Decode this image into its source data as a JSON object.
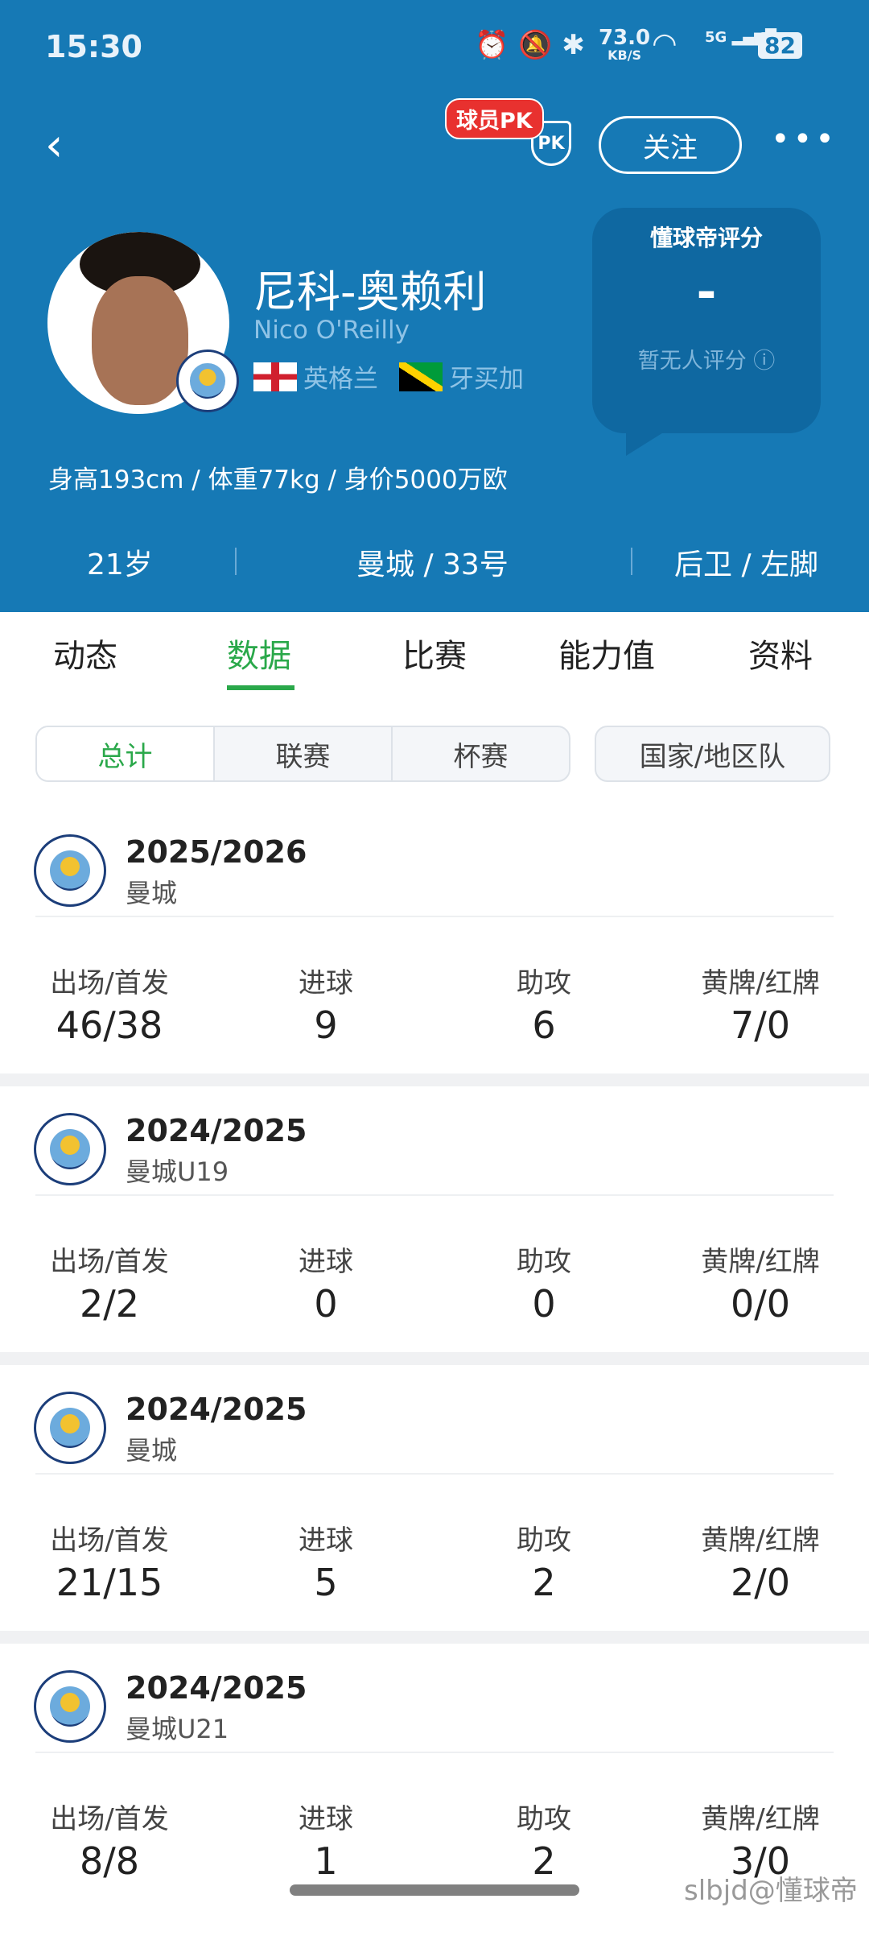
{
  "status_bar": {
    "time": "15:30",
    "net_speed": "73.0",
    "net_unit": "KB/S",
    "signal": "5G",
    "battery": "82"
  },
  "header": {
    "pk_badge": "球员PK",
    "pk_icon": "PK",
    "follow_label": "关注"
  },
  "player": {
    "name_cn": "尼科-奥赖利",
    "name_en": "Nico O'Reilly",
    "nationalities": [
      "英格兰",
      "牙买加"
    ],
    "stats_line": "身高193cm / 体重77kg / 身价5000万欧",
    "age": "21岁",
    "club_number": "曼城 / 33号",
    "position_foot": "后卫 / 左脚"
  },
  "rating": {
    "title": "懂球帝评分",
    "value": "-",
    "note": "暂无人评分"
  },
  "tabs": [
    {
      "label": "动态"
    },
    {
      "label": "数据",
      "active": true
    },
    {
      "label": "比赛"
    },
    {
      "label": "能力值"
    },
    {
      "label": "资料"
    }
  ],
  "filters": {
    "segments": [
      "总计",
      "联赛",
      "杯赛"
    ],
    "active": "总计",
    "national": "国家/地区队"
  },
  "colors": {
    "header_blue": "#1679b5",
    "accent_green": "#2aa84a",
    "pk_red": "#e8312f"
  },
  "stat_labels": [
    "出场/首发",
    "进球",
    "助攻",
    "黄牌/红牌"
  ],
  "seasons": [
    {
      "season": "2025/2026",
      "team": "曼城",
      "values": [
        "46/38",
        "9",
        "6",
        "7/0"
      ]
    },
    {
      "season": "2024/2025",
      "team": "曼城U19",
      "values": [
        "2/2",
        "0",
        "0",
        "0/0"
      ]
    },
    {
      "season": "2024/2025",
      "team": "曼城",
      "values": [
        "21/15",
        "5",
        "2",
        "2/0"
      ]
    },
    {
      "season": "2024/2025",
      "team": "曼城U21",
      "values": [
        "8/8",
        "1",
        "2",
        "3/0"
      ]
    }
  ],
  "watermark": "slbjd@懂球帝"
}
